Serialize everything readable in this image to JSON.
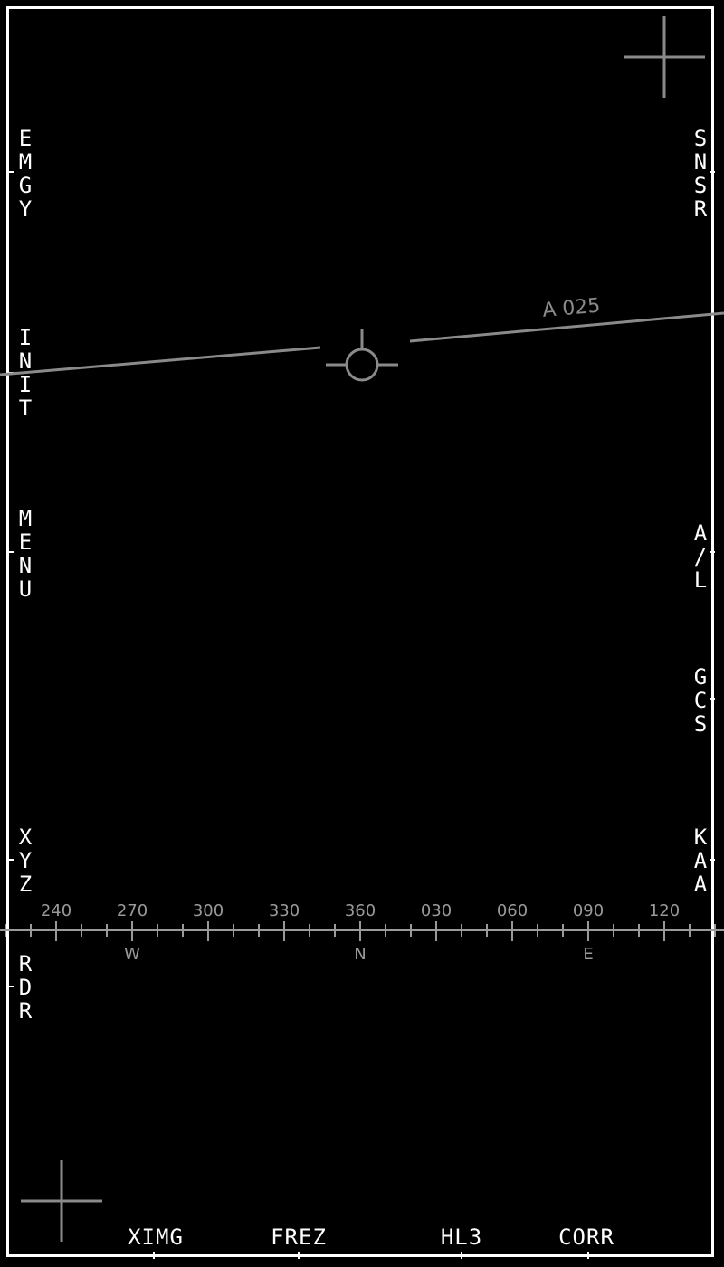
{
  "left_buttons": [
    {
      "name": "osb-emgy",
      "label": "EMGY"
    },
    {
      "name": "osb-init",
      "label": "INIT"
    },
    {
      "name": "osb-menu",
      "label": "MENU"
    },
    {
      "name": "osb-xyz",
      "label": "XYZ"
    },
    {
      "name": "osb-rdr",
      "label": "RDR"
    }
  ],
  "right_buttons": [
    {
      "name": "osb-snsr",
      "label": "SNSR"
    },
    {
      "name": "osb-al",
      "label": "A/L"
    },
    {
      "name": "osb-gcs",
      "label": "GCS"
    },
    {
      "name": "osb-kaa",
      "label": "KAA"
    }
  ],
  "bottom_buttons": [
    {
      "name": "osb-ximg",
      "label": "XIMG"
    },
    {
      "name": "osb-frez",
      "label": "FREZ"
    },
    {
      "name": "osb-hl3",
      "label": "HL3"
    },
    {
      "name": "osb-corr",
      "label": "CORR"
    }
  ],
  "horizon": {
    "label": "A 025",
    "color": "#8a8a8a"
  },
  "heading_tape": {
    "labels": [
      "240",
      "270",
      "300",
      "330",
      "360",
      "030",
      "060",
      "090",
      "120"
    ],
    "cardinals": [
      "W",
      "N",
      "E"
    ],
    "color": "#9a9a9a"
  },
  "colors": {
    "background": "#000000",
    "symbology": "#ffffff",
    "dim": "#8a8a8a"
  },
  "icons": {
    "crosshair_top_right": "crosshair-icon",
    "crosshair_bottom_left": "crosshair-icon",
    "boresight": "boresight-reticle-icon"
  }
}
